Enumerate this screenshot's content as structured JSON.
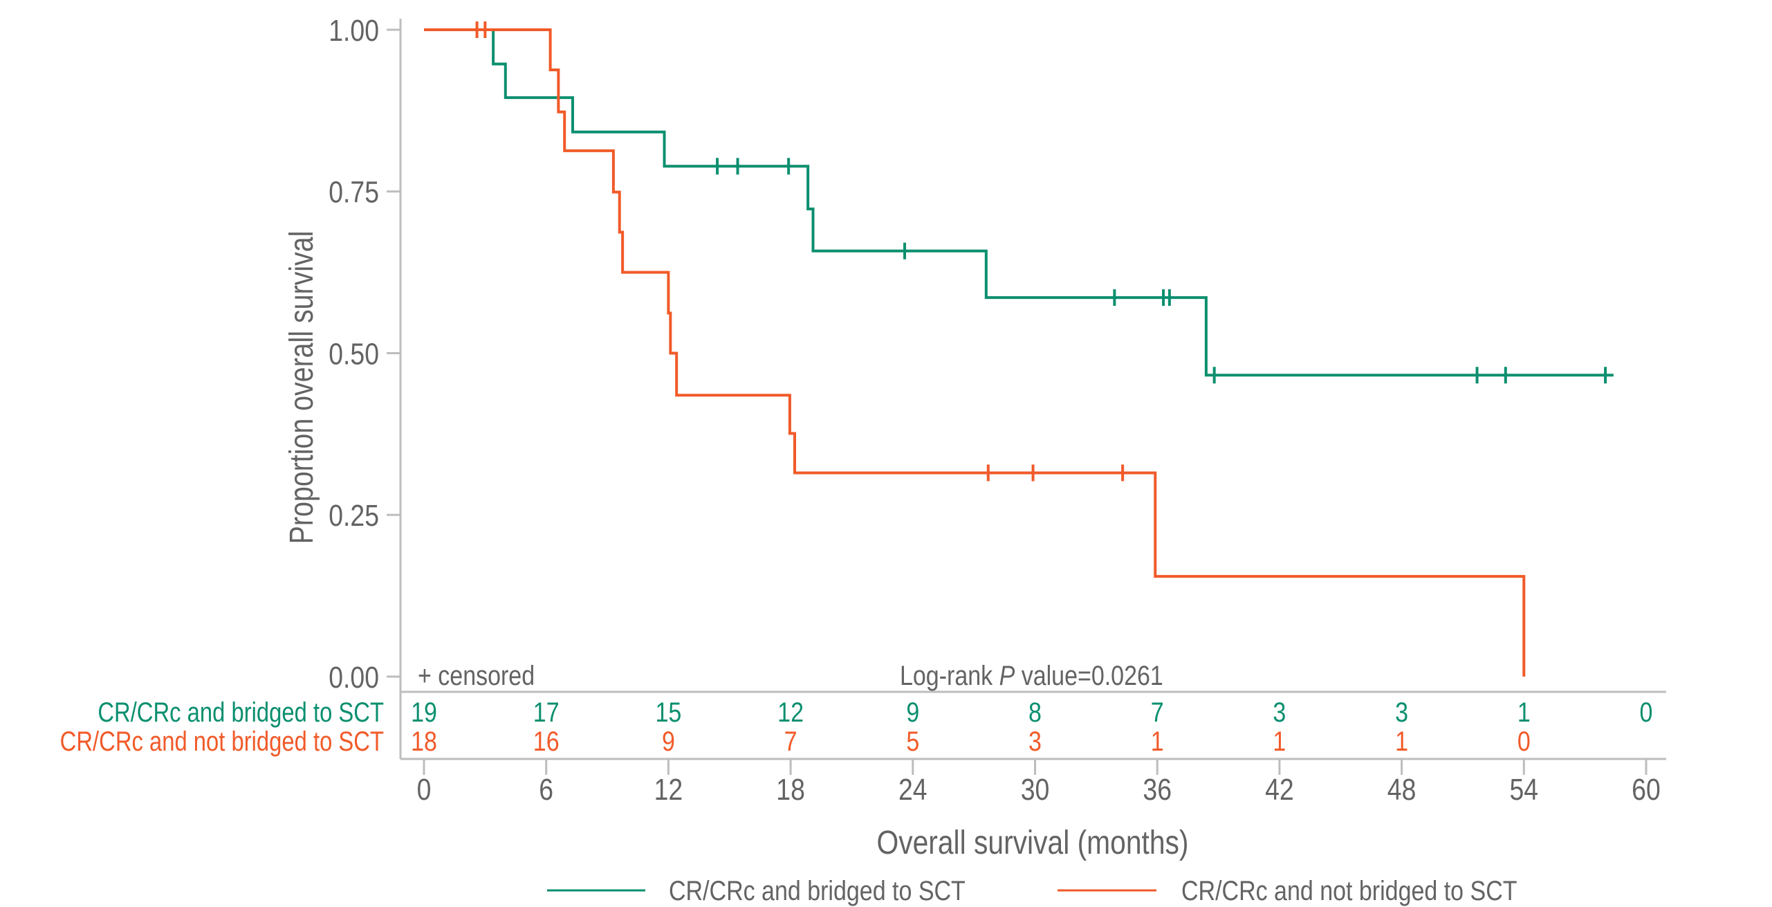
{
  "chart_data": {
    "type": "line",
    "subtype": "kaplan-meier",
    "title": "",
    "xlabel": "Overall survival (months)",
    "ylabel": "Proportion overall survival",
    "xlim": [
      0,
      60
    ],
    "ylim": [
      0,
      1
    ],
    "xticks": [
      0,
      6,
      12,
      18,
      24,
      30,
      36,
      42,
      48,
      54,
      60
    ],
    "yticks": [
      0.0,
      0.25,
      0.5,
      0.75,
      1.0
    ],
    "ytick_labels": [
      "0.00",
      "0.25",
      "0.50",
      "0.75",
      "1.00"
    ],
    "grid": false,
    "legend_position": "bottom",
    "annotations": {
      "censored_note": "+ censored",
      "logrank_prefix": "Log-rank ",
      "logrank_p": "P",
      "logrank_suffix": " value=0.0261"
    },
    "series": [
      {
        "name": "CR/CRc and bridged to SCT",
        "color": "#0b8f6f",
        "steps": [
          [
            0,
            1.0
          ],
          [
            3.4,
            0.947
          ],
          [
            4.0,
            0.895
          ],
          [
            7.3,
            0.842
          ],
          [
            11.8,
            0.789
          ],
          [
            18.85,
            0.723
          ],
          [
            19.1,
            0.658
          ],
          [
            27.6,
            0.586
          ],
          [
            38.4,
            0.466
          ]
        ],
        "end_time": 58.4,
        "censored": [
          14.4,
          15.4,
          17.9,
          23.6,
          33.9,
          36.3,
          36.6,
          38.8,
          51.7,
          53.1,
          58.0
        ]
      },
      {
        "name": "CR/CRc and not bridged to SCT",
        "color": "#f15a29",
        "steps": [
          [
            0,
            1.0
          ],
          [
            6.2,
            0.938
          ],
          [
            6.6,
            0.873
          ],
          [
            6.9,
            0.813
          ],
          [
            9.3,
            0.749
          ],
          [
            9.6,
            0.687
          ],
          [
            9.75,
            0.625
          ],
          [
            12.0,
            0.562
          ],
          [
            12.1,
            0.5
          ],
          [
            12.4,
            0.435
          ],
          [
            17.96,
            0.376
          ],
          [
            18.2,
            0.315
          ],
          [
            35.9,
            0.155
          ],
          [
            54.0,
            0.0
          ]
        ],
        "end_time": 54.0,
        "censored": [
          2.6,
          3.0,
          27.7,
          29.9,
          34.3
        ]
      }
    ],
    "risk_table": {
      "times": [
        0,
        6,
        12,
        18,
        24,
        30,
        36,
        42,
        48,
        54,
        60
      ],
      "rows": [
        {
          "label": "CR/CRc and bridged to SCT",
          "color": "#0b8f6f",
          "values": [
            "19",
            "17",
            "15",
            "12",
            "9",
            "8",
            "7",
            "3",
            "3",
            "1",
            "0"
          ]
        },
        {
          "label": "CR/CRc and not bridged to SCT",
          "color": "#f15a29",
          "values": [
            "18",
            "16",
            "9",
            "7",
            "5",
            "3",
            "1",
            "1",
            "1",
            "0",
            ""
          ]
        }
      ]
    },
    "legend": [
      {
        "label": "CR/CRc and bridged to SCT",
        "color": "#0b8f6f"
      },
      {
        "label": "CR/CRc and not bridged to SCT",
        "color": "#f15a29"
      }
    ]
  },
  "style": {
    "axis_color": "#bdbdbd",
    "text_color": "#636363"
  }
}
